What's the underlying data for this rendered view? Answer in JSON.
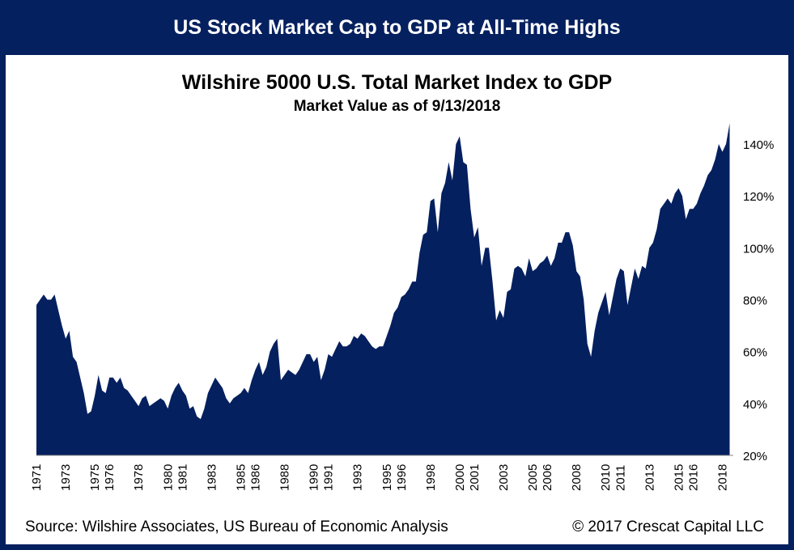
{
  "banner": {
    "title": "US Stock Market Cap to GDP at All-Time Highs"
  },
  "footer": {
    "source": "Source: Wilshire Associates, US Bureau of Economic Analysis",
    "copyright": "© 2017 Crescat Capital LLC"
  },
  "colors": {
    "frame": "#05205f",
    "area": "#05205f",
    "background": "#ffffff"
  },
  "chart_data": {
    "type": "area",
    "title": "Wilshire 5000 U.S. Total Market Index to GDP",
    "subtitle": "Market Value as of 9/13/2018",
    "xlabel": "",
    "ylabel": "",
    "ylim": [
      20,
      150
    ],
    "xlim": [
      1971.0,
      2018.75
    ],
    "y_ticks": [
      20,
      40,
      60,
      80,
      100,
      120,
      140
    ],
    "y_tick_labels": [
      "20%",
      "40%",
      "60%",
      "80%",
      "100%",
      "120%",
      "140%"
    ],
    "x_ticks": [
      1971,
      1973,
      1975,
      1976,
      1978,
      1980,
      1981,
      1983,
      1985,
      1986,
      1988,
      1990,
      1991,
      1993,
      1995,
      1996,
      1998,
      2000,
      2001,
      2003,
      2005,
      2006,
      2008,
      2010,
      2011,
      2013,
      2015,
      2016,
      2018
    ],
    "x_tick_labels": [
      "1971",
      "1973",
      "1975",
      "1976",
      "1978",
      "1980",
      "1981",
      "1983",
      "1985",
      "1986",
      "1988",
      "1990",
      "1991",
      "1993",
      "1995",
      "1996",
      "1998",
      "2000",
      "2001",
      "2003",
      "2005",
      "2006",
      "2008",
      "2010",
      "2011",
      "2013",
      "2015",
      "2016",
      "2018"
    ],
    "grid": false,
    "legend": "none",
    "series": [
      {
        "values": [
          [
            1971.0,
            78
          ],
          [
            1971.25,
            80
          ],
          [
            1971.5,
            82
          ],
          [
            1971.75,
            80
          ],
          [
            1972.0,
            80
          ],
          [
            1972.25,
            82
          ],
          [
            1972.5,
            76
          ],
          [
            1972.75,
            70
          ],
          [
            1973.0,
            65
          ],
          [
            1973.25,
            68
          ],
          [
            1973.5,
            58
          ],
          [
            1973.75,
            56
          ],
          [
            1974.0,
            50
          ],
          [
            1974.25,
            44
          ],
          [
            1974.5,
            36
          ],
          [
            1974.75,
            37
          ],
          [
            1975.0,
            43
          ],
          [
            1975.25,
            51
          ],
          [
            1975.5,
            45
          ],
          [
            1975.75,
            44
          ],
          [
            1976.0,
            50
          ],
          [
            1976.25,
            50
          ],
          [
            1976.5,
            48
          ],
          [
            1976.75,
            50
          ],
          [
            1977.0,
            46
          ],
          [
            1977.25,
            45
          ],
          [
            1977.5,
            43
          ],
          [
            1977.75,
            41
          ],
          [
            1978.0,
            39
          ],
          [
            1978.25,
            42
          ],
          [
            1978.5,
            43
          ],
          [
            1978.75,
            39
          ],
          [
            1979.0,
            40
          ],
          [
            1979.25,
            41
          ],
          [
            1979.5,
            42
          ],
          [
            1979.75,
            41
          ],
          [
            1980.0,
            38
          ],
          [
            1980.25,
            43
          ],
          [
            1980.5,
            46
          ],
          [
            1980.75,
            48
          ],
          [
            1981.0,
            45
          ],
          [
            1981.25,
            43
          ],
          [
            1981.5,
            38
          ],
          [
            1981.75,
            39
          ],
          [
            1982.0,
            35
          ],
          [
            1982.25,
            34
          ],
          [
            1982.5,
            38
          ],
          [
            1982.75,
            44
          ],
          [
            1983.0,
            47
          ],
          [
            1983.25,
            50
          ],
          [
            1983.5,
            48
          ],
          [
            1983.75,
            46
          ],
          [
            1984.0,
            42
          ],
          [
            1984.25,
            40
          ],
          [
            1984.5,
            42
          ],
          [
            1984.75,
            43
          ],
          [
            1985.0,
            44
          ],
          [
            1985.25,
            46
          ],
          [
            1985.5,
            44
          ],
          [
            1985.75,
            49
          ],
          [
            1986.0,
            53
          ],
          [
            1986.25,
            56
          ],
          [
            1986.5,
            51
          ],
          [
            1986.75,
            54
          ],
          [
            1987.0,
            60
          ],
          [
            1987.25,
            63
          ],
          [
            1987.5,
            65
          ],
          [
            1987.75,
            49
          ],
          [
            1988.0,
            51
          ],
          [
            1988.25,
            53
          ],
          [
            1988.5,
            52
          ],
          [
            1988.75,
            51
          ],
          [
            1989.0,
            53
          ],
          [
            1989.25,
            56
          ],
          [
            1989.5,
            59
          ],
          [
            1989.75,
            59
          ],
          [
            1990.0,
            56
          ],
          [
            1990.25,
            58
          ],
          [
            1990.5,
            49
          ],
          [
            1990.75,
            53
          ],
          [
            1991.0,
            59
          ],
          [
            1991.25,
            58
          ],
          [
            1991.5,
            61
          ],
          [
            1991.75,
            64
          ],
          [
            1992.0,
            62
          ],
          [
            1992.25,
            62
          ],
          [
            1992.5,
            63
          ],
          [
            1992.75,
            66
          ],
          [
            1993.0,
            65
          ],
          [
            1993.25,
            67
          ],
          [
            1993.5,
            66
          ],
          [
            1993.75,
            64
          ],
          [
            1994.0,
            62
          ],
          [
            1994.25,
            61
          ],
          [
            1994.5,
            62
          ],
          [
            1994.75,
            62
          ],
          [
            1995.0,
            66
          ],
          [
            1995.25,
            70
          ],
          [
            1995.5,
            75
          ],
          [
            1995.75,
            77
          ],
          [
            1996.0,
            81
          ],
          [
            1996.25,
            82
          ],
          [
            1996.5,
            84
          ],
          [
            1996.75,
            87
          ],
          [
            1997.0,
            87
          ],
          [
            1997.25,
            98
          ],
          [
            1997.5,
            105
          ],
          [
            1997.75,
            106
          ],
          [
            1998.0,
            118
          ],
          [
            1998.25,
            119
          ],
          [
            1998.5,
            106
          ],
          [
            1998.75,
            121
          ],
          [
            1999.0,
            125
          ],
          [
            1999.25,
            133
          ],
          [
            1999.5,
            126
          ],
          [
            1999.75,
            140
          ],
          [
            2000.0,
            143
          ],
          [
            2000.25,
            133
          ],
          [
            2000.5,
            132
          ],
          [
            2000.75,
            115
          ],
          [
            2001.0,
            104
          ],
          [
            2001.25,
            108
          ],
          [
            2001.5,
            93
          ],
          [
            2001.75,
            100
          ],
          [
            2002.0,
            100
          ],
          [
            2002.25,
            87
          ],
          [
            2002.5,
            72
          ],
          [
            2002.75,
            76
          ],
          [
            2003.0,
            73
          ],
          [
            2003.25,
            83
          ],
          [
            2003.5,
            84
          ],
          [
            2003.75,
            92
          ],
          [
            2004.0,
            93
          ],
          [
            2004.25,
            92
          ],
          [
            2004.5,
            89
          ],
          [
            2004.75,
            96
          ],
          [
            2005.0,
            91
          ],
          [
            2005.25,
            92
          ],
          [
            2005.5,
            94
          ],
          [
            2005.75,
            95
          ],
          [
            2006.0,
            97
          ],
          [
            2006.25,
            93
          ],
          [
            2006.5,
            96
          ],
          [
            2006.75,
            102
          ],
          [
            2007.0,
            102
          ],
          [
            2007.25,
            106
          ],
          [
            2007.5,
            106
          ],
          [
            2007.75,
            101
          ],
          [
            2008.0,
            91
          ],
          [
            2008.25,
            89
          ],
          [
            2008.5,
            80
          ],
          [
            2008.75,
            63
          ],
          [
            2009.0,
            58
          ],
          [
            2009.25,
            68
          ],
          [
            2009.5,
            75
          ],
          [
            2009.75,
            79
          ],
          [
            2010.0,
            83
          ],
          [
            2010.25,
            74
          ],
          [
            2010.5,
            81
          ],
          [
            2010.75,
            88
          ],
          [
            2011.0,
            92
          ],
          [
            2011.25,
            91
          ],
          [
            2011.5,
            78
          ],
          [
            2011.75,
            85
          ],
          [
            2012.0,
            92
          ],
          [
            2012.25,
            88
          ],
          [
            2012.5,
            93
          ],
          [
            2012.75,
            92
          ],
          [
            2013.0,
            100
          ],
          [
            2013.25,
            102
          ],
          [
            2013.5,
            107
          ],
          [
            2013.75,
            115
          ],
          [
            2014.0,
            117
          ],
          [
            2014.25,
            119
          ],
          [
            2014.5,
            117
          ],
          [
            2014.75,
            121
          ],
          [
            2015.0,
            123
          ],
          [
            2015.25,
            120
          ],
          [
            2015.5,
            111
          ],
          [
            2015.75,
            115
          ],
          [
            2016.0,
            115
          ],
          [
            2016.25,
            117
          ],
          [
            2016.5,
            121
          ],
          [
            2016.75,
            124
          ],
          [
            2017.0,
            128
          ],
          [
            2017.25,
            130
          ],
          [
            2017.5,
            134
          ],
          [
            2017.75,
            140
          ],
          [
            2018.0,
            137
          ],
          [
            2018.25,
            140
          ],
          [
            2018.5,
            148
          ]
        ]
      }
    ]
  }
}
